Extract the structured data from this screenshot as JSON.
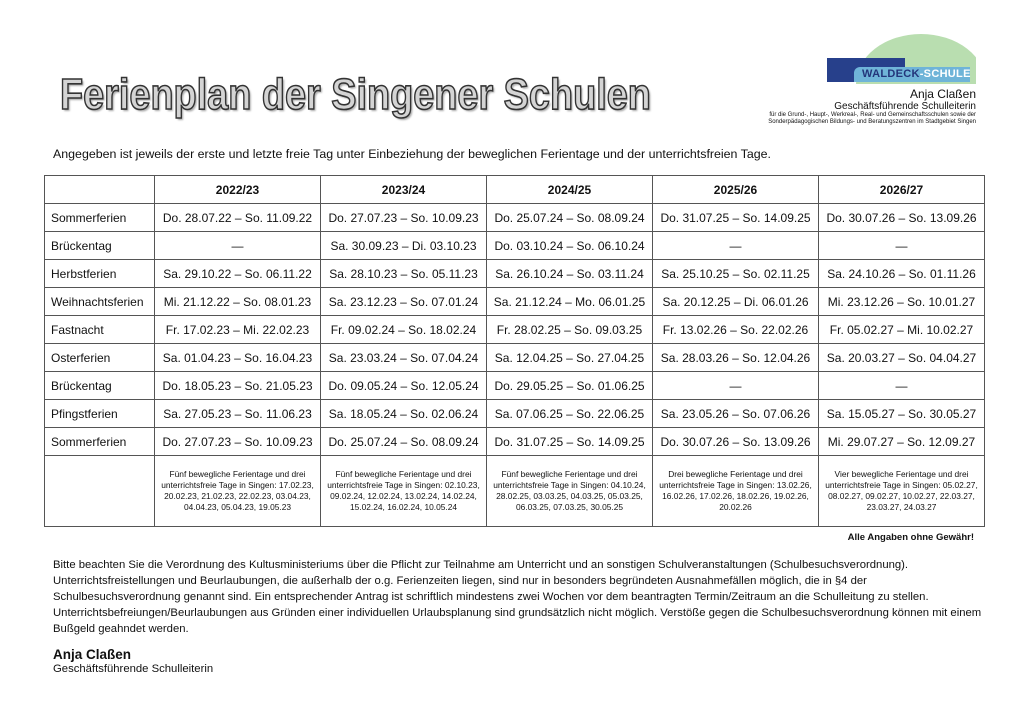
{
  "header": {
    "title": "Ferienplan der Singener Schulen",
    "logo_text_a": "WALDECK",
    "logo_text_b": "-SCHULE",
    "signer_name": "Anja Claßen",
    "signer_role": "Geschäftsführende Schulleiterin",
    "scope_line1": "für die Grund-, Haupt-, Werkreal-, Real- und Gemeinschaftsschulen sowie der",
    "scope_line2": "Sonderpädagogischen Bildungs- und Beratungszentren im Stadtgebiet Singen",
    "colors": {
      "logo_dark": "#27408b",
      "logo_light": "#6fb4d8",
      "logo_green": "#b9deb0"
    }
  },
  "intro": "Angegeben ist jeweils der erste und letzte freie Tag unter Einbeziehung der beweglichen Ferientage und der unterrichtsfreien Tage.",
  "table": {
    "years": [
      "2022/23",
      "2023/24",
      "2024/25",
      "2025/26",
      "2026/27"
    ],
    "rows": [
      {
        "label": "Sommerferien",
        "cells": [
          "Do. 28.07.22 – So. 11.09.22",
          "Do. 27.07.23 – So. 10.09.23",
          "Do. 25.07.24 – So. 08.09.24",
          "Do. 31.07.25 – So. 14.09.25",
          "Do. 30.07.26 – So. 13.09.26"
        ]
      },
      {
        "label": "Brückentag",
        "cells": [
          "—",
          "Sa. 30.09.23 – Di. 03.10.23",
          "Do. 03.10.24 – So. 06.10.24",
          "—",
          "—"
        ]
      },
      {
        "label": "Herbstferien",
        "cells": [
          "Sa. 29.10.22 – So. 06.11.22",
          "Sa. 28.10.23 – So. 05.11.23",
          "Sa. 26.10.24 – So. 03.11.24",
          "Sa. 25.10.25 – So. 02.11.25",
          "Sa. 24.10.26 – So. 01.11.26"
        ]
      },
      {
        "label": "Weihnachtsferien",
        "cells": [
          "Mi. 21.12.22 – So. 08.01.23",
          "Sa. 23.12.23 – So. 07.01.24",
          "Sa. 21.12.24 – Mo. 06.01.25",
          "Sa. 20.12.25 – Di. 06.01.26",
          "Mi. 23.12.26 – So. 10.01.27"
        ]
      },
      {
        "label": "Fastnacht",
        "cells": [
          "Fr. 17.02.23 – Mi. 22.02.23",
          "Fr. 09.02.24 – So. 18.02.24",
          "Fr. 28.02.25 – So. 09.03.25",
          "Fr. 13.02.26 – So. 22.02.26",
          "Fr. 05.02.27 – Mi. 10.02.27"
        ]
      },
      {
        "label": "Osterferien",
        "cells": [
          "Sa. 01.04.23 – So. 16.04.23",
          "Sa. 23.03.24 – So. 07.04.24",
          "Sa. 12.04.25 – So. 27.04.25",
          "Sa. 28.03.26 – So. 12.04.26",
          "Sa. 20.03.27 – So. 04.04.27"
        ]
      },
      {
        "label": "Brückentag",
        "cells": [
          "Do. 18.05.23 – So. 21.05.23",
          "Do. 09.05.24 – So. 12.05.24",
          "Do. 29.05.25 – So. 01.06.25",
          "—",
          "—"
        ]
      },
      {
        "label": "Pfingstferien",
        "cells": [
          "Sa. 27.05.23 – So. 11.06.23",
          "Sa. 18.05.24 – So. 02.06.24",
          "Sa. 07.06.25 – So. 22.06.25",
          "Sa. 23.05.26 – So. 07.06.26",
          "Sa. 15.05.27 – So. 30.05.27"
        ]
      },
      {
        "label": "Sommerferien",
        "cells": [
          "Do. 27.07.23 – So. 10.09.23",
          "Do. 25.07.24 – So. 08.09.24",
          "Do. 31.07.25 – So. 14.09.25",
          "Do. 30.07.26 – So. 13.09.26",
          "Mi. 29.07.27 – So. 12.09.27"
        ]
      }
    ],
    "notes": [
      "Fünf bewegliche Ferientage und drei unterrichtsfreie Tage in Singen: 17.02.23, 20.02.23, 21.02.23, 22.02.23, 03.04.23, 04.04.23, 05.04.23, 19.05.23",
      "Fünf bewegliche Ferientage und drei unterrichtsfreie Tage in Singen: 02.10.23, 09.02.24, 12.02.24, 13.02.24, 14.02.24, 15.02.24, 16.02.24, 10.05.24",
      "Fünf bewegliche Ferientage und drei unterrichtsfreie Tage in Singen: 04.10.24, 28.02.25, 03.03.25, 04.03.25, 05.03.25, 06.03.25, 07.03.25, 30.05.25",
      "Drei bewegliche Ferientage und drei unterrichtsfreie Tage in Singen: 13.02.26, 16.02.26, 17.02.26, 18.02.26, 19.02.26, 20.02.26",
      "Vier bewegliche Ferientage und drei unterrichtsfreie Tage in Singen: 05.02.27, 08.02.27, 09.02.27, 10.02.27, 22.03.27, 23.03.27, 24.03.27"
    ]
  },
  "disclaimer": "Alle Angaben ohne Gewähr!",
  "body_lines": [
    "Bitte beachten Sie die Verordnung des Kultusministeriums über die Pflicht zur Teilnahme am Unterricht und an sonstigen Schulveranstaltungen (Schulbesuchsverordnung).",
    "Unterrichtsfreistellungen und Beurlaubungen, die außerhalb der o.g. Ferienzeiten liegen, sind nur in besonders begründeten Ausnahmefällen möglich, die in §4 der",
    "Schulbesuchsverordnung genannt sind. Ein entsprechender Antrag ist schriftlich mindestens zwei Wochen vor dem beantragten Termin/Zeitraum an die Schulleitung zu stellen.",
    "Unterrichtsbefreiungen/Beurlaubungen aus Gründen einer individuellen Urlaubsplanung sind grundsätzlich nicht möglich. Verstöße gegen die Schulbesuchsverordnung können mit einem",
    "Bußgeld geahndet werden."
  ],
  "footer": {
    "name": "Anja Claßen",
    "role": "Geschäftsführende Schulleiterin"
  }
}
